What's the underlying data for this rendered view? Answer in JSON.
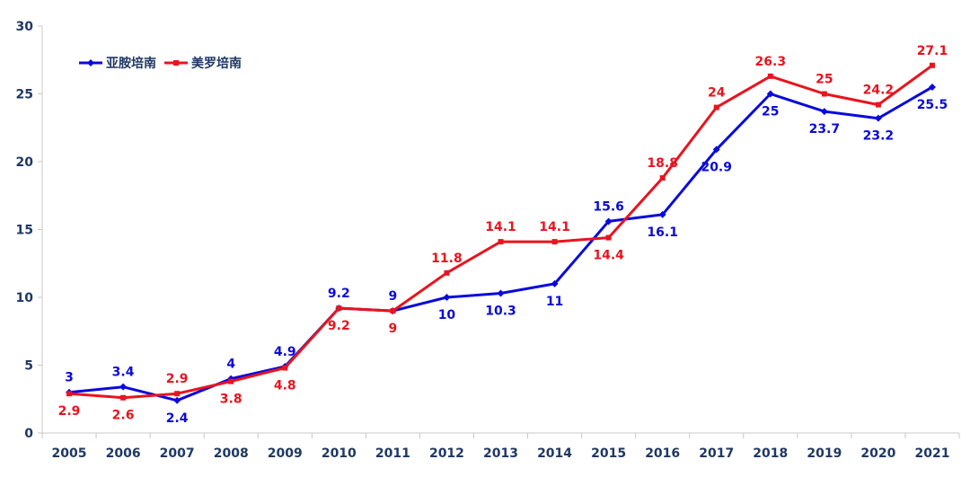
{
  "chart_data": {
    "type": "line",
    "title": "",
    "xlabel": "",
    "ylabel": "",
    "categories": [
      "2005",
      "2006",
      "2007",
      "2008",
      "2009",
      "2010",
      "2011",
      "2012",
      "2013",
      "2014",
      "2015",
      "2016",
      "2017",
      "2018",
      "2019",
      "2020",
      "2021"
    ],
    "ylim": [
      0,
      30
    ],
    "yticks": [
      0,
      5,
      10,
      15,
      20,
      25,
      30
    ],
    "grid": false,
    "legend_position": "top-left",
    "axis_label_color": "#1f3864",
    "series": [
      {
        "name": "亚胺培南",
        "color": "#0a0adc",
        "marker": "diamond",
        "values": [
          3,
          3.4,
          2.4,
          4,
          4.9,
          9.2,
          9,
          10,
          10.3,
          11,
          15.6,
          16.1,
          20.9,
          25,
          23.7,
          23.2,
          25.5
        ],
        "labels": [
          "3",
          "3.4",
          "2.4",
          "4",
          "4.9",
          "9.2",
          "9",
          "10",
          "10.3",
          "11",
          "15.6",
          "16.1",
          "20.9",
          "25",
          "23.7",
          "23.2",
          "25.5"
        ]
      },
      {
        "name": "美罗培南",
        "color": "#e8141e",
        "marker": "square",
        "values": [
          2.9,
          2.6,
          2.9,
          3.8,
          4.8,
          9.2,
          9,
          11.8,
          14.1,
          14.1,
          14.4,
          18.8,
          24,
          26.3,
          25,
          24.2,
          27.1
        ],
        "labels": [
          "2.9",
          "2.6",
          "2.9",
          "3.8",
          "4.8",
          "9.2",
          "9",
          "11.8",
          "14.1",
          "14.1",
          "14.4",
          "18.8",
          "24",
          "26.3",
          "25",
          "24.2",
          "27.1"
        ]
      }
    ]
  }
}
